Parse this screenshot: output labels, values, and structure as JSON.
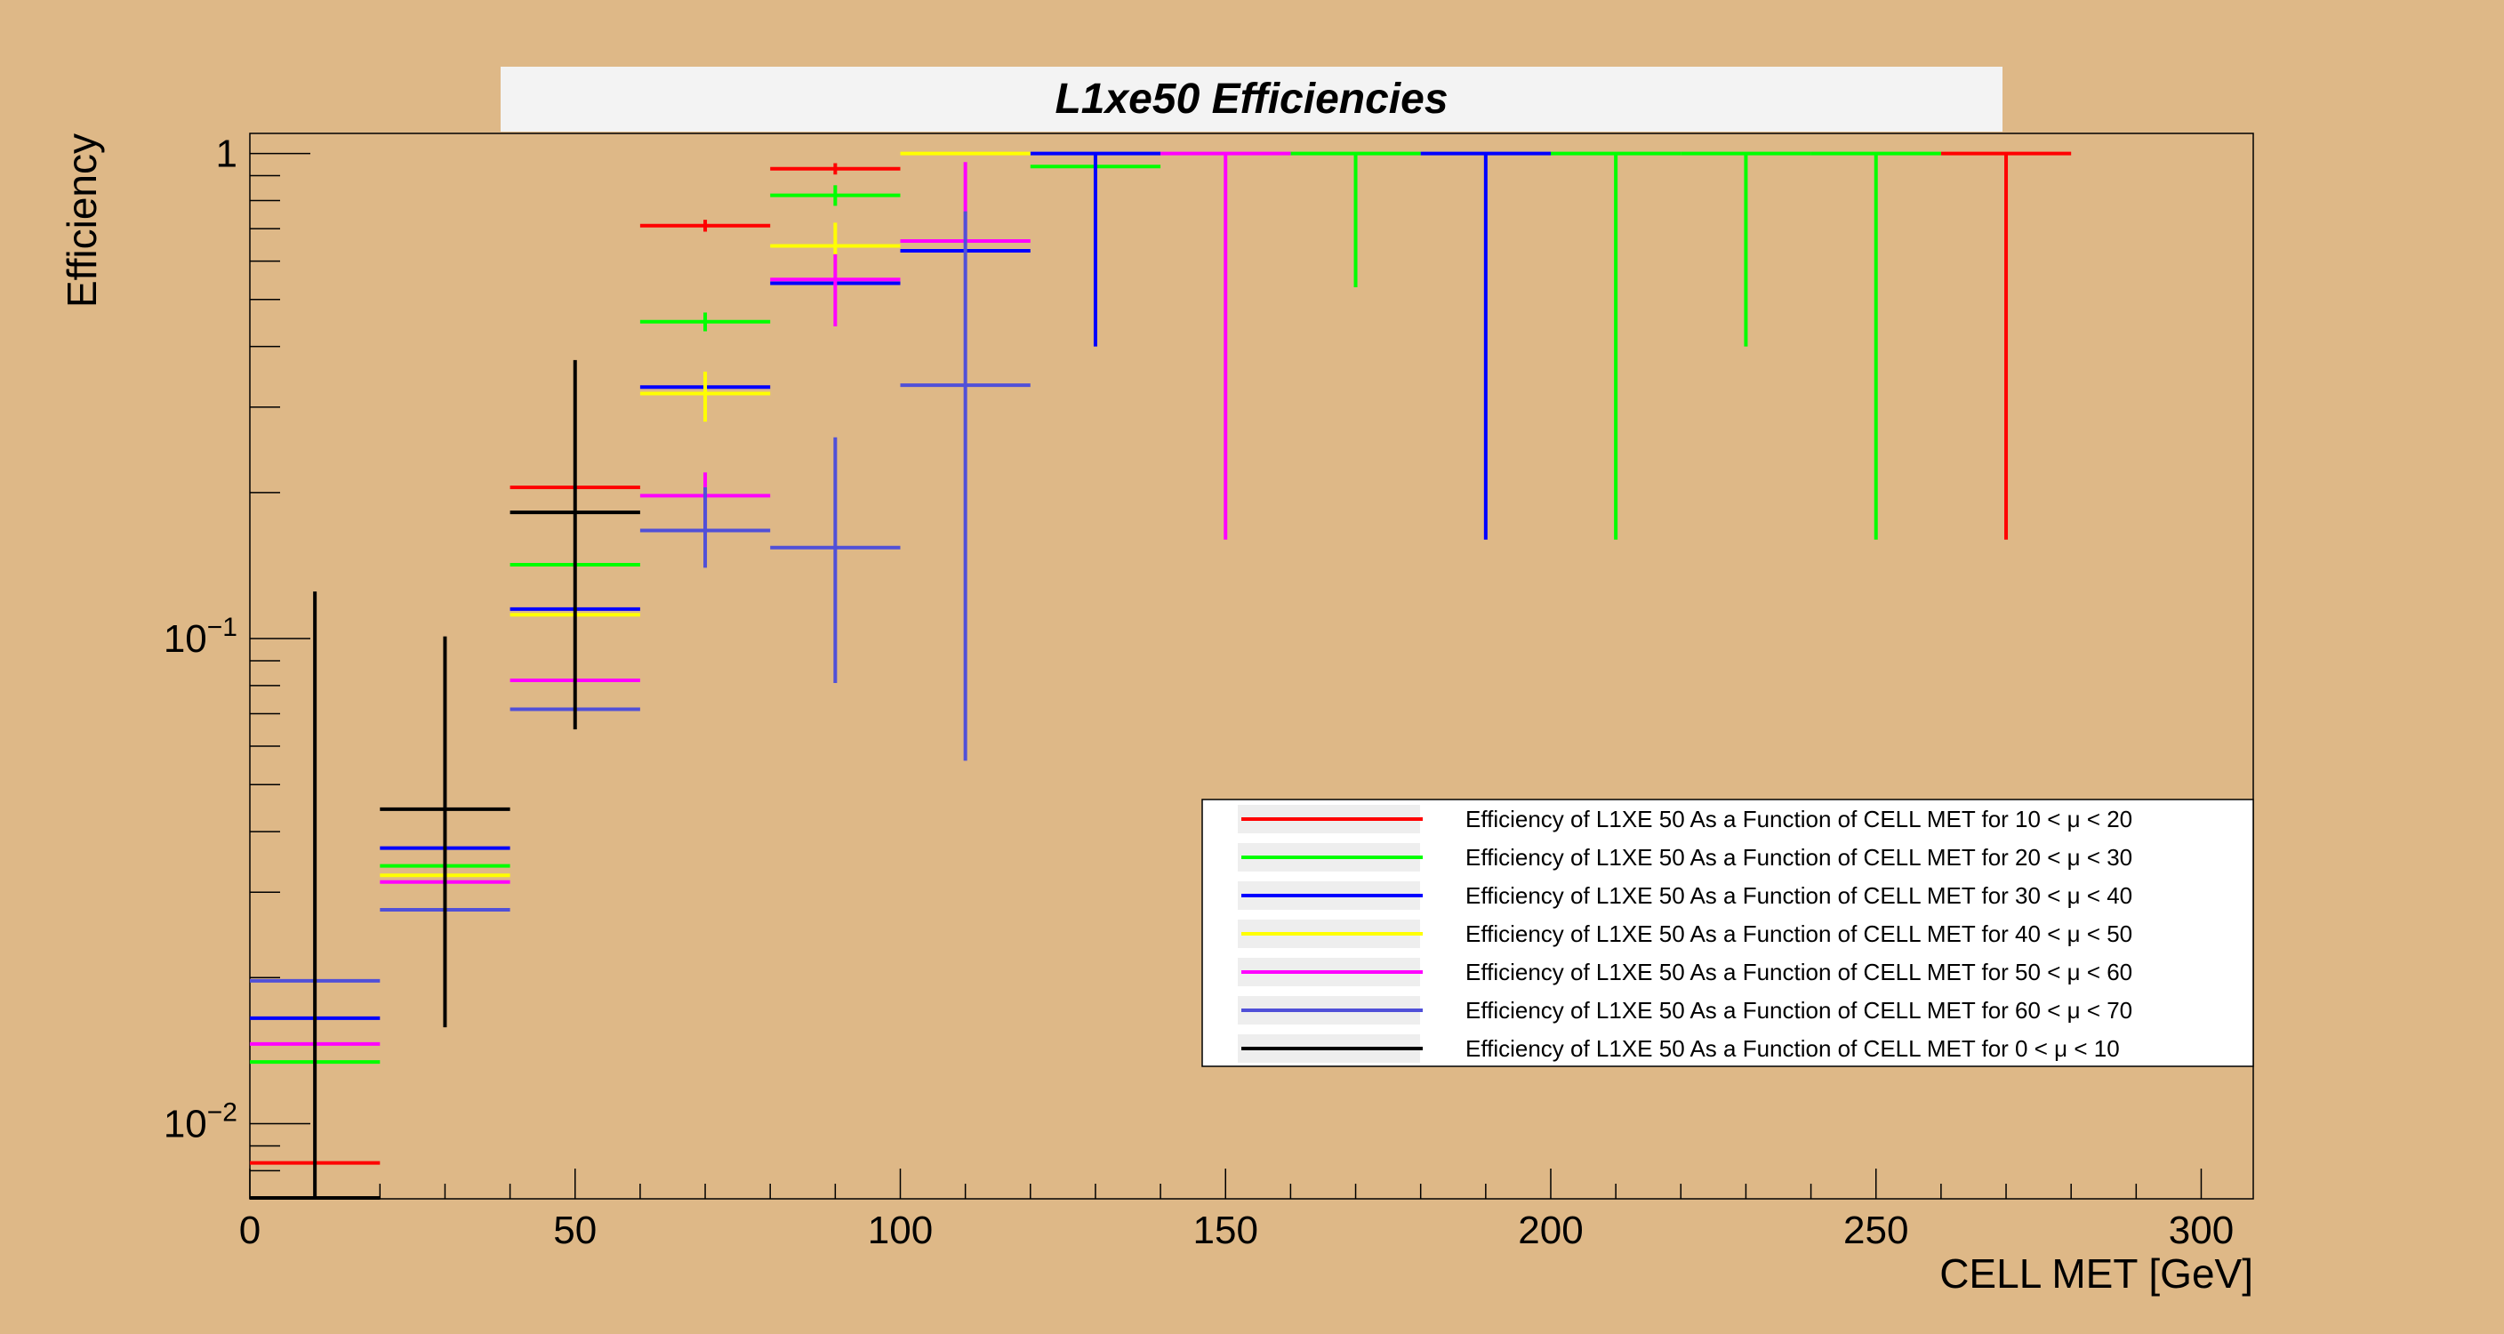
{
  "chart_data": {
    "type": "scatter",
    "title": "L1xe50 Efficiencies",
    "xlabel": "CELL MET [GeV]",
    "ylabel": "Efficiency",
    "xlim": [
      0,
      308
    ],
    "ylim": [
      0.007,
      1.1
    ],
    "y_scale": "log",
    "x_ticks": [
      0,
      50,
      100,
      150,
      200,
      250,
      300
    ],
    "x_tick_labels": [
      "0",
      "50",
      "100",
      "150",
      "200",
      "250",
      "300"
    ],
    "y_tick_labels": [
      {
        "value": 1,
        "base": "1",
        "exp": ""
      },
      {
        "value": 0.1,
        "base": "10",
        "exp": "−1"
      },
      {
        "value": 0.01,
        "base": "10",
        "exp": "−2"
      }
    ],
    "legend_position": "bottom-right",
    "series": [
      {
        "name": "Efficiency of L1XE 50 As a Function of CELL MET for 10 < μ < 20",
        "color": "#ff0000",
        "points": [
          {
            "x": 10,
            "xerr": 10,
            "y": 0.0083,
            "ylow": 0.0083,
            "yhigh": 0.0083
          },
          {
            "x": 50,
            "xerr": 10,
            "y": 0.205,
            "ylow": 0.205,
            "yhigh": 0.205
          },
          {
            "x": 70,
            "xerr": 10,
            "y": 0.71,
            "ylow": 0.69,
            "yhigh": 0.73
          },
          {
            "x": 90,
            "xerr": 10,
            "y": 0.93,
            "ylow": 0.905,
            "yhigh": 0.955
          },
          {
            "x": 270,
            "xerr": 10,
            "y": 1.0,
            "ylow": 0.16,
            "yhigh": 1.0
          }
        ]
      },
      {
        "name": "Efficiency of L1XE 50 As a Function of CELL MET for 20 < μ < 30",
        "color": "#00ff00",
        "points": [
          {
            "x": 10,
            "xerr": 10,
            "y": 0.0134,
            "ylow": 0.0134,
            "yhigh": 0.0134
          },
          {
            "x": 30,
            "xerr": 10,
            "y": 0.034,
            "ylow": 0.034,
            "yhigh": 0.034
          },
          {
            "x": 50,
            "xerr": 10,
            "y": 0.142,
            "ylow": 0.142,
            "yhigh": 0.142
          },
          {
            "x": 70,
            "xerr": 10,
            "y": 0.45,
            "ylow": 0.43,
            "yhigh": 0.47
          },
          {
            "x": 90,
            "xerr": 10,
            "y": 0.82,
            "ylow": 0.78,
            "yhigh": 0.86
          },
          {
            "x": 130,
            "xerr": 10,
            "y": 0.94,
            "ylow": 0.94,
            "yhigh": 0.94
          },
          {
            "x": 170,
            "xerr": 10,
            "y": 1.0,
            "ylow": 0.53,
            "yhigh": 1.0
          },
          {
            "x": 210,
            "xerr": 10,
            "y": 1.0,
            "ylow": 0.16,
            "yhigh": 1.0
          },
          {
            "x": 230,
            "xerr": 10,
            "y": 1.0,
            "ylow": 0.4,
            "yhigh": 1.0
          },
          {
            "x": 250,
            "xerr": 10,
            "y": 1.0,
            "ylow": 0.16,
            "yhigh": 1.0
          }
        ]
      },
      {
        "name": "Efficiency of L1XE 50 As a Function of CELL MET for 30 < μ < 40",
        "color": "#0000ff",
        "points": [
          {
            "x": 10,
            "xerr": 10,
            "y": 0.0165,
            "ylow": 0.0165,
            "yhigh": 0.0165
          },
          {
            "x": 30,
            "xerr": 10,
            "y": 0.037,
            "ylow": 0.037,
            "yhigh": 0.037
          },
          {
            "x": 50,
            "xerr": 10,
            "y": 0.115,
            "ylow": 0.115,
            "yhigh": 0.115
          },
          {
            "x": 70,
            "xerr": 10,
            "y": 0.33,
            "ylow": 0.33,
            "yhigh": 0.33
          },
          {
            "x": 90,
            "xerr": 10,
            "y": 0.54,
            "ylow": 0.54,
            "yhigh": 0.54
          },
          {
            "x": 110,
            "xerr": 10,
            "y": 0.63,
            "ylow": 0.63,
            "yhigh": 0.63
          },
          {
            "x": 130,
            "xerr": 10,
            "y": 1.0,
            "ylow": 0.4,
            "yhigh": 1.0
          },
          {
            "x": 190,
            "xerr": 10,
            "y": 1.0,
            "ylow": 0.16,
            "yhigh": 1.0
          }
        ]
      },
      {
        "name": "Efficiency of L1XE 50 As a Function of CELL MET for 40 < μ < 50",
        "color": "#ffff00",
        "points": [
          {
            "x": 30,
            "xerr": 10,
            "y": 0.0325,
            "ylow": 0.0325,
            "yhigh": 0.0325
          },
          {
            "x": 50,
            "xerr": 10,
            "y": 0.112,
            "ylow": 0.112,
            "yhigh": 0.112
          },
          {
            "x": 70,
            "xerr": 10,
            "y": 0.32,
            "ylow": 0.28,
            "yhigh": 0.355
          },
          {
            "x": 90,
            "xerr": 10,
            "y": 0.645,
            "ylow": 0.57,
            "yhigh": 0.72
          },
          {
            "x": 110,
            "xerr": 10,
            "y": 1.0,
            "ylow": 1.0,
            "yhigh": 1.0
          }
        ]
      },
      {
        "name": "Efficiency of L1XE 50 As a Function of CELL MET for 50 < μ < 60",
        "color": "#ff00ff",
        "points": [
          {
            "x": 10,
            "xerr": 10,
            "y": 0.0146,
            "ylow": 0.0146,
            "yhigh": 0.0146
          },
          {
            "x": 30,
            "xerr": 10,
            "y": 0.0315,
            "ylow": 0.0315,
            "yhigh": 0.0315
          },
          {
            "x": 50,
            "xerr": 10,
            "y": 0.082,
            "ylow": 0.082,
            "yhigh": 0.082
          },
          {
            "x": 70,
            "xerr": 10,
            "y": 0.197,
            "ylow": 0.165,
            "yhigh": 0.22
          },
          {
            "x": 90,
            "xerr": 10,
            "y": 0.55,
            "ylow": 0.44,
            "yhigh": 0.62
          },
          {
            "x": 110,
            "xerr": 10,
            "y": 0.66,
            "ylow": 0.66,
            "yhigh": 0.96
          },
          {
            "x": 150,
            "xerr": 10,
            "y": 1.0,
            "ylow": 0.16,
            "yhigh": 1.0
          }
        ]
      },
      {
        "name": "Efficiency of L1XE 50 As a Function of CELL MET for 60 < μ < 70",
        "color": "#5050d8",
        "points": [
          {
            "x": 10,
            "xerr": 10,
            "y": 0.0197,
            "ylow": 0.0197,
            "yhigh": 0.0197
          },
          {
            "x": 30,
            "xerr": 10,
            "y": 0.0276,
            "ylow": 0.0276,
            "yhigh": 0.0276
          },
          {
            "x": 50,
            "xerr": 10,
            "y": 0.0715,
            "ylow": 0.0715,
            "yhigh": 0.0715
          },
          {
            "x": 70,
            "xerr": 10,
            "y": 0.167,
            "ylow": 0.14,
            "yhigh": 0.205
          },
          {
            "x": 90,
            "xerr": 10,
            "y": 0.154,
            "ylow": 0.081,
            "yhigh": 0.26
          },
          {
            "x": 110,
            "xerr": 10,
            "y": 0.333,
            "ylow": 0.056,
            "yhigh": 0.76
          }
        ]
      },
      {
        "name": "Efficiency of L1XE 50 As a Function of CELL MET for 0 < μ < 10",
        "color": "#000000",
        "points": [
          {
            "x": 10,
            "xerr": 10,
            "y": 0.00703,
            "ylow": 0.00703,
            "yhigh": 0.125
          },
          {
            "x": 30,
            "xerr": 10,
            "y": 0.0445,
            "ylow": 0.0158,
            "yhigh": 0.101
          },
          {
            "x": 50,
            "xerr": 10,
            "y": 0.182,
            "ylow": 0.065,
            "yhigh": 0.375
          }
        ]
      }
    ]
  }
}
